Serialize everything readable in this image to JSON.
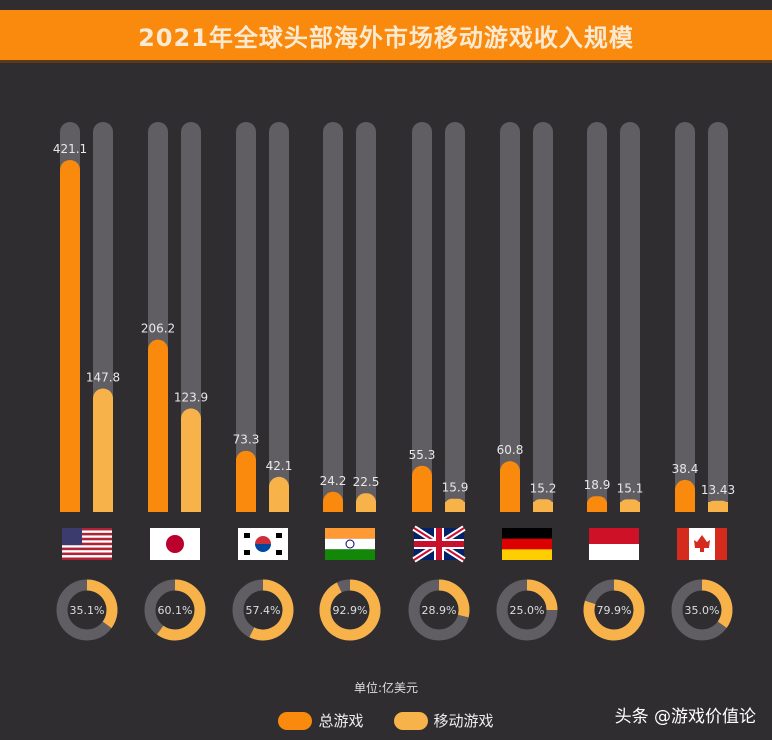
{
  "title": "2021年全球头部海外市场移动游戏收入规模",
  "unit": "单位:亿美元",
  "watermark": "头条 @游戏价值论",
  "colors": {
    "background": "#2f2d30",
    "total": "#f98a0e",
    "mobile": "#f7b24a",
    "track": "#605e62"
  },
  "chart_data": {
    "type": "bar",
    "categories": [
      "United States",
      "Japan",
      "South Korea",
      "India",
      "United Kingdom",
      "Germany",
      "Indonesia",
      "Canada"
    ],
    "flags": [
      "us-flag",
      "japan-flag",
      "south-korea-flag",
      "india-flag",
      "uk-flag",
      "germany-flag",
      "indonesia-flag",
      "canada-flag"
    ],
    "series": [
      {
        "name": "总游戏",
        "values": [
          421.1,
          206.2,
          73.3,
          24.2,
          55.3,
          60.8,
          18.9,
          38.4
        ],
        "labels": [
          "421.1",
          "206.2",
          "73.3",
          "24.2",
          "55.3",
          "60.8",
          "18.9",
          "38.4"
        ]
      },
      {
        "name": "移动游戏",
        "values": [
          147.8,
          123.9,
          42.1,
          22.5,
          15.9,
          15.2,
          15.1,
          13.43
        ],
        "labels": [
          "147.8",
          "123.9",
          "42.1",
          "22.5",
          "15.9",
          "15.2",
          "15.1",
          "13.43"
        ]
      }
    ],
    "ylim": [
      0,
      466
    ],
    "donut_type": "pie",
    "donut_values": [
      35.1,
      60.1,
      57.4,
      92.9,
      28.9,
      25.0,
      79.9,
      35.0
    ],
    "donut_labels": [
      "35.1%",
      "60.1%",
      "57.4%",
      "92.9%",
      "28.9%",
      "25.0%",
      "79.9%",
      "35.0%"
    ],
    "legend_position": "bottom"
  }
}
